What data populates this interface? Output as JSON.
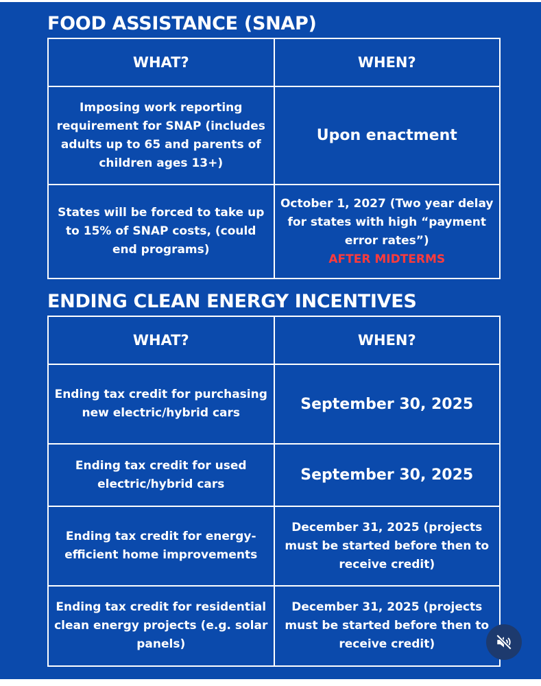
{
  "snap": {
    "title": "FOOD ASSISTANCE (SNAP)",
    "headers": [
      "WHAT?",
      "WHEN?"
    ],
    "rows": [
      {
        "what": "Imposing work reporting requirement for SNAP (includes adults up to 65 and parents of children ages 13+)",
        "when": "Upon enactment"
      },
      {
        "what": "States will be forced to take up to 15% of SNAP costs, (could end programs)",
        "when": "October 1, 2027 (Two year delay for states with high “payment error rates”)",
        "note": "AFTER MIDTERMS"
      }
    ]
  },
  "clean_energy": {
    "title": "ENDING CLEAN ENERGY INCENTIVES",
    "headers": [
      "WHAT?",
      "WHEN?"
    ],
    "rows": [
      {
        "what": "Ending tax credit for purchasing new electric/hybrid cars",
        "when": "September 30, 2025"
      },
      {
        "what": "Ending tax credit for used electric/hybrid cars",
        "when": "September 30, 2025"
      },
      {
        "what": "Ending tax credit for energy-efficient home improvements",
        "when": "December 31, 2025 (projects must be started before then to receive credit)"
      },
      {
        "what": "Ending tax credit for residential clean energy projects (e.g. solar panels)",
        "when": "December 31, 2025 (projects must be started before then to receive credit)"
      }
    ]
  },
  "colors": {
    "background": "#0b4aac",
    "highlight": "#ff3b3b"
  },
  "controls": {
    "mute_icon": "speaker-muted-icon"
  }
}
